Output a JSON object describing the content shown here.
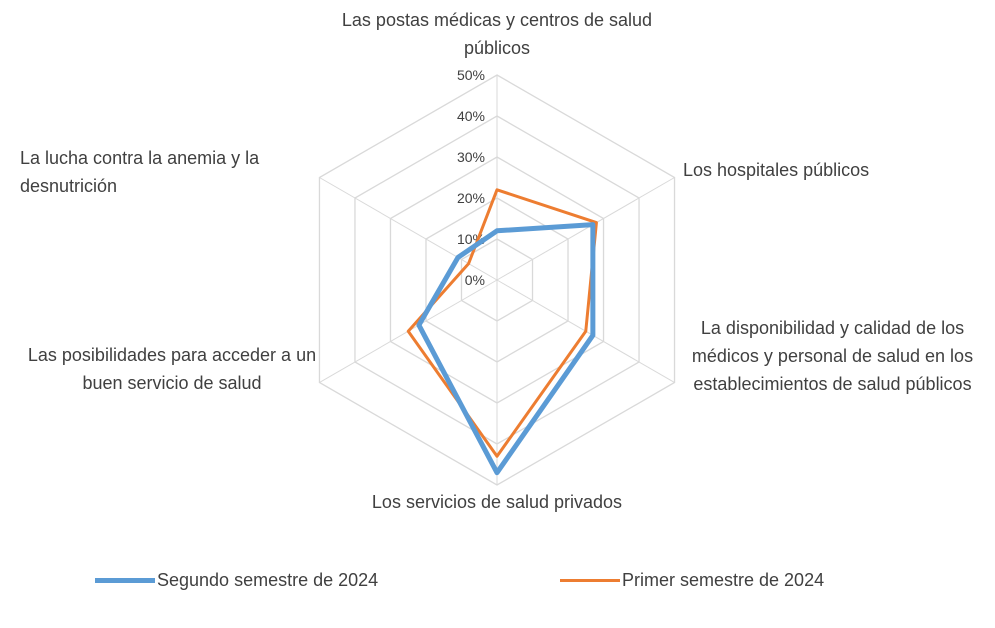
{
  "chart_data": {
    "type": "radar",
    "categories": [
      "Las postas médicas y centros de salud públicos",
      "Los hospitales públicos",
      "La disponibilidad y calidad de los médicos y personal de salud en los establecimientos de salud públicos",
      "Los servicios de salud privados",
      "Las posibilidades para acceder a un buen servicio de salud",
      "La lucha contra la anemia y la desnutrición"
    ],
    "series": [
      {
        "name": "Segundo semestre de 2024",
        "color": "#5b9bd5",
        "values": [
          12,
          27,
          27,
          47,
          22,
          11
        ]
      },
      {
        "name": "Primer semestre de 2024",
        "color": "#ed7d31",
        "values": [
          22,
          28,
          25,
          43,
          25,
          8
        ]
      }
    ],
    "ylim": [
      0,
      50
    ],
    "yticks": [
      {
        "value": 0,
        "label": "0%"
      },
      {
        "value": 10,
        "label": "10%"
      },
      {
        "value": 20,
        "label": "20%"
      },
      {
        "value": 30,
        "label": "30%"
      },
      {
        "value": 40,
        "label": "40%"
      },
      {
        "value": 50,
        "label": "50%"
      }
    ],
    "grid": true,
    "legend": "bottom"
  }
}
